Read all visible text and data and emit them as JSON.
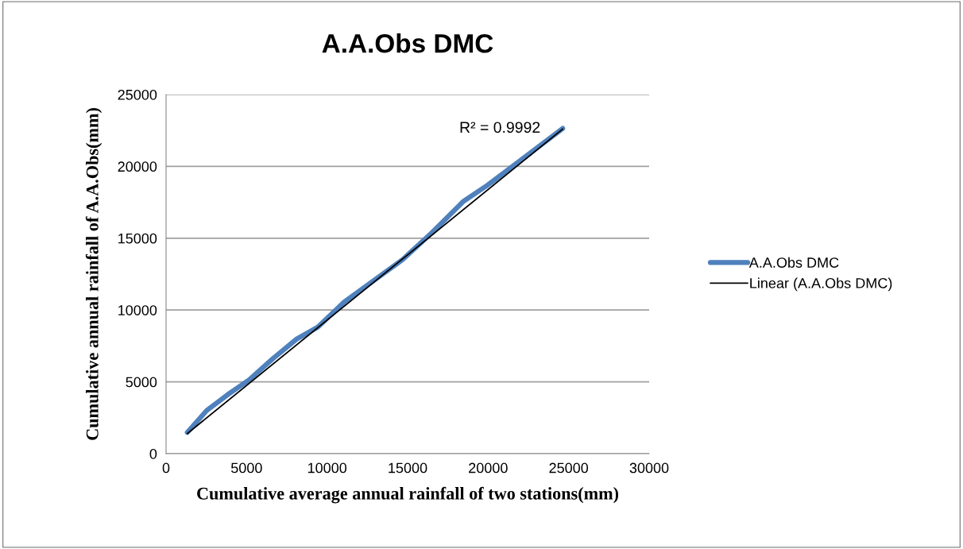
{
  "chart_data": {
    "type": "line",
    "title": "A.A.Obs DMC",
    "xlabel": "Cumulative average annual rainfall of two stations(mm)",
    "ylabel": "Cumulative annual rainfall of A.A.Obs(mm)",
    "series": [
      {
        "name": "A.A.Obs DMC",
        "color": "#4f81bd",
        "x": [
          1320,
          2520,
          3830,
          5150,
          6620,
          8110,
          9420,
          11070,
          14690,
          16490,
          18470,
          19950,
          21920,
          24630
        ],
        "values": [
          1480,
          3000,
          4110,
          5130,
          6600,
          7980,
          8810,
          10560,
          13510,
          15360,
          17570,
          18680,
          20340,
          22640
        ]
      },
      {
        "name": "Linear (A.A.Obs DMC)",
        "color": "#000000",
        "x": [
          1320,
          24630
        ],
        "values": [
          1400,
          22600
        ]
      }
    ],
    "annotations": [
      "R² = 0.9992"
    ],
    "xlim": [
      0,
      30000
    ],
    "xticks": [
      0,
      5000,
      10000,
      15000,
      20000,
      25000,
      30000
    ],
    "ylim": [
      0,
      25000
    ],
    "yticks": [
      0,
      5000,
      10000,
      15000,
      20000,
      25000
    ],
    "grid": "y",
    "legend": "right"
  }
}
